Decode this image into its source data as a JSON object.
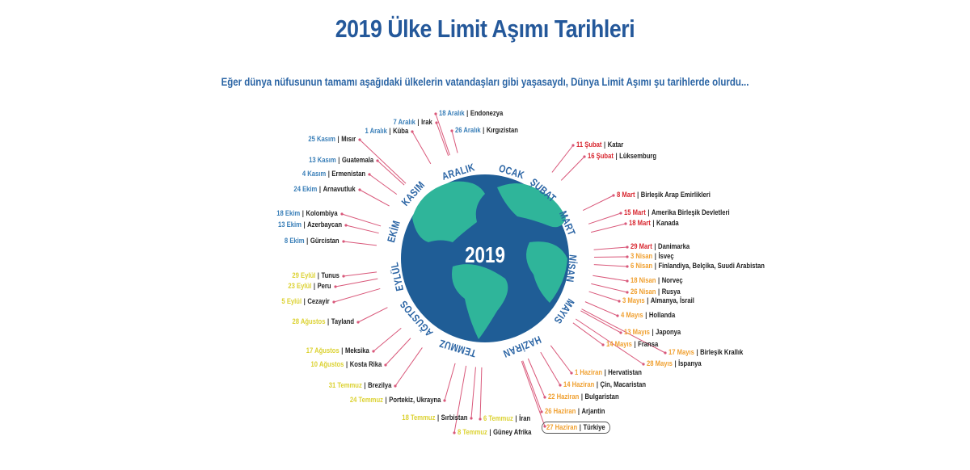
{
  "title": "2019 Ülke Limit Aşımı Tarihleri",
  "subtitle": "Eğer dünya nüfusunun tamamı aşağıdaki ülkelerin vatandaşları gibi yaşasaydı, Dünya Limit Aşımı şu tarihlerde olurdu...",
  "globe_label": "2019",
  "colors": {
    "blue": "#3a7fb8",
    "red": "#d8262f",
    "orange": "#f0a030",
    "yellow": "#dcd232",
    "line": "#d9587a",
    "globe_ocean": "#1f5d96",
    "globe_land": "#2fb59a",
    "title": "#24589a"
  },
  "months": [
    "OCAK",
    "ŞUBAT",
    "MART",
    "NİSAN",
    "MAYIS",
    "HAZİRAN",
    "TEMMUZ",
    "AĞUSTOS",
    "EYLÜL",
    "EKİM",
    "KASIM",
    "ARALIK"
  ],
  "separator": "|",
  "entries": [
    {
      "date": "18 Aralık",
      "country": "Endonezya",
      "color": "blue"
    },
    {
      "date": "7 Aralık",
      "country": "Irak",
      "color": "blue"
    },
    {
      "date": "1 Aralık",
      "country": "Küba",
      "color": "blue"
    },
    {
      "date": "25 Kasım",
      "country": "Mısır",
      "color": "blue"
    },
    {
      "date": "26 Aralık",
      "country": "Kırgızistan",
      "color": "blue"
    },
    {
      "date": "13 Kasım",
      "country": "Guatemala",
      "color": "blue"
    },
    {
      "date": "4 Kasım",
      "country": "Ermenistan",
      "color": "blue"
    },
    {
      "date": "24 Ekim",
      "country": "Arnavutluk",
      "color": "blue"
    },
    {
      "date": "18 Ekim",
      "country": "Kolombiya",
      "color": "blue"
    },
    {
      "date": "13 Ekim",
      "country": "Azerbaycan",
      "color": "blue"
    },
    {
      "date": "8 Ekim",
      "country": "Gürcistan",
      "color": "blue"
    },
    {
      "date": "29 Eylül",
      "country": "Tunus",
      "color": "yellow"
    },
    {
      "date": "23 Eylül",
      "country": "Peru",
      "color": "yellow"
    },
    {
      "date": "5 Eylül",
      "country": "Cezayir",
      "color": "yellow"
    },
    {
      "date": "28 Ağustos",
      "country": "Tayland",
      "color": "yellow"
    },
    {
      "date": "17 Ağustos",
      "country": "Meksika",
      "color": "yellow"
    },
    {
      "date": "10 Ağustos",
      "country": "Kosta Rika",
      "color": "yellow"
    },
    {
      "date": "31 Temmuz",
      "country": "Brezilya",
      "color": "yellow"
    },
    {
      "date": "24 Temmuz",
      "country": "Portekiz, Ukrayna",
      "color": "yellow"
    },
    {
      "date": "18 Temmuz",
      "country": "Sırbistan",
      "color": "yellow"
    },
    {
      "date": "8 Temmuz",
      "country": "Güney Afrika",
      "color": "yellow"
    },
    {
      "date": "6 Temmuz",
      "country": "İran",
      "color": "yellow"
    },
    {
      "date": "11 Şubat",
      "country": "Katar",
      "color": "red"
    },
    {
      "date": "16 Şubat",
      "country": "Lüksemburg",
      "color": "red"
    },
    {
      "date": "8 Mart",
      "country": "Birleşik Arap Emirlikleri",
      "color": "red"
    },
    {
      "date": "15 Mart",
      "country": "Amerika Birleşik Devletleri",
      "color": "red"
    },
    {
      "date": "18 Mart",
      "country": "Kanada",
      "color": "red"
    },
    {
      "date": "29 Mart",
      "country": "Danimarka",
      "color": "red"
    },
    {
      "date": "3 Nisan",
      "country": "İsveç",
      "color": "orange"
    },
    {
      "date": "6 Nisan",
      "country": "Finlandiya, Belçika, Suudi Arabistan",
      "color": "orange"
    },
    {
      "date": "18 Nisan",
      "country": "Norveç",
      "color": "orange"
    },
    {
      "date": "26 Nisan",
      "country": "Rusya",
      "color": "orange"
    },
    {
      "date": "3 Mayıs",
      "country": "Almanya, İsrail",
      "color": "orange"
    },
    {
      "date": "4 Mayıs",
      "country": "Hollanda",
      "color": "orange"
    },
    {
      "date": "13 Mayıs",
      "country": "Japonya",
      "color": "orange"
    },
    {
      "date": "14 Mayıs",
      "country": "Fransa",
      "color": "orange"
    },
    {
      "date": "17 Mayıs",
      "country": "Birleşik Krallık",
      "color": "orange"
    },
    {
      "date": "28 Mayıs",
      "country": "İspanya",
      "color": "orange"
    },
    {
      "date": "1 Haziran",
      "country": "Hervatistan",
      "color": "orange"
    },
    {
      "date": "14 Haziran",
      "country": "Çin, Macaristan",
      "color": "orange"
    },
    {
      "date": "22 Haziran",
      "country": "Bulgaristan",
      "color": "orange"
    },
    {
      "date": "26 Haziran",
      "country": "Arjantin",
      "color": "orange"
    },
    {
      "date": "27 Haziran",
      "country": "Türkiye",
      "color": "orange",
      "highlighted": true
    }
  ]
}
